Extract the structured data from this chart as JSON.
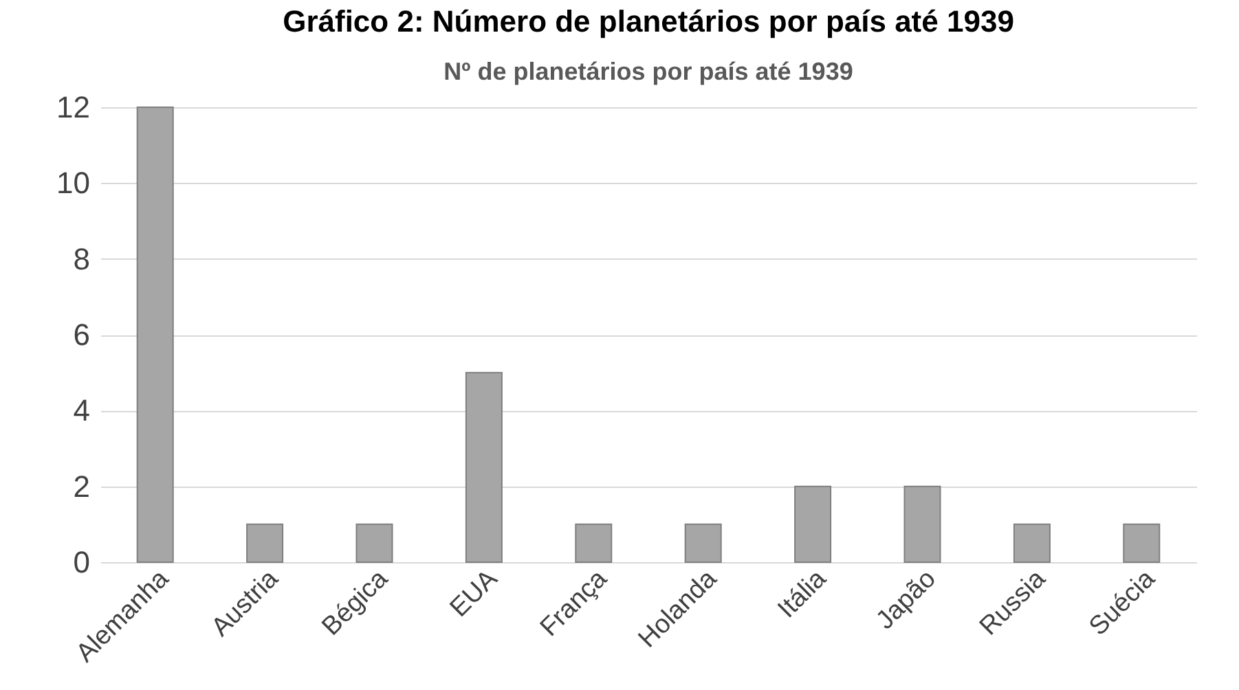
{
  "chart_data": {
    "type": "bar",
    "title": "Gráfico 2: Número de planetários por país até 1939",
    "subtitle": "Nº de planetários por país até 1939",
    "categories": [
      "Alemanha",
      "Austria",
      "Bégica",
      "EUA",
      "França",
      "Holanda",
      "Itália",
      "Japão",
      "Russia",
      "Suécia"
    ],
    "values": [
      12,
      1,
      1,
      5,
      1,
      1,
      2,
      2,
      1,
      1
    ],
    "color": "#a6a6a6",
    "ylim": [
      0,
      12
    ],
    "yticks": [
      0,
      2,
      4,
      6,
      8,
      10,
      12
    ],
    "grid": "y"
  }
}
